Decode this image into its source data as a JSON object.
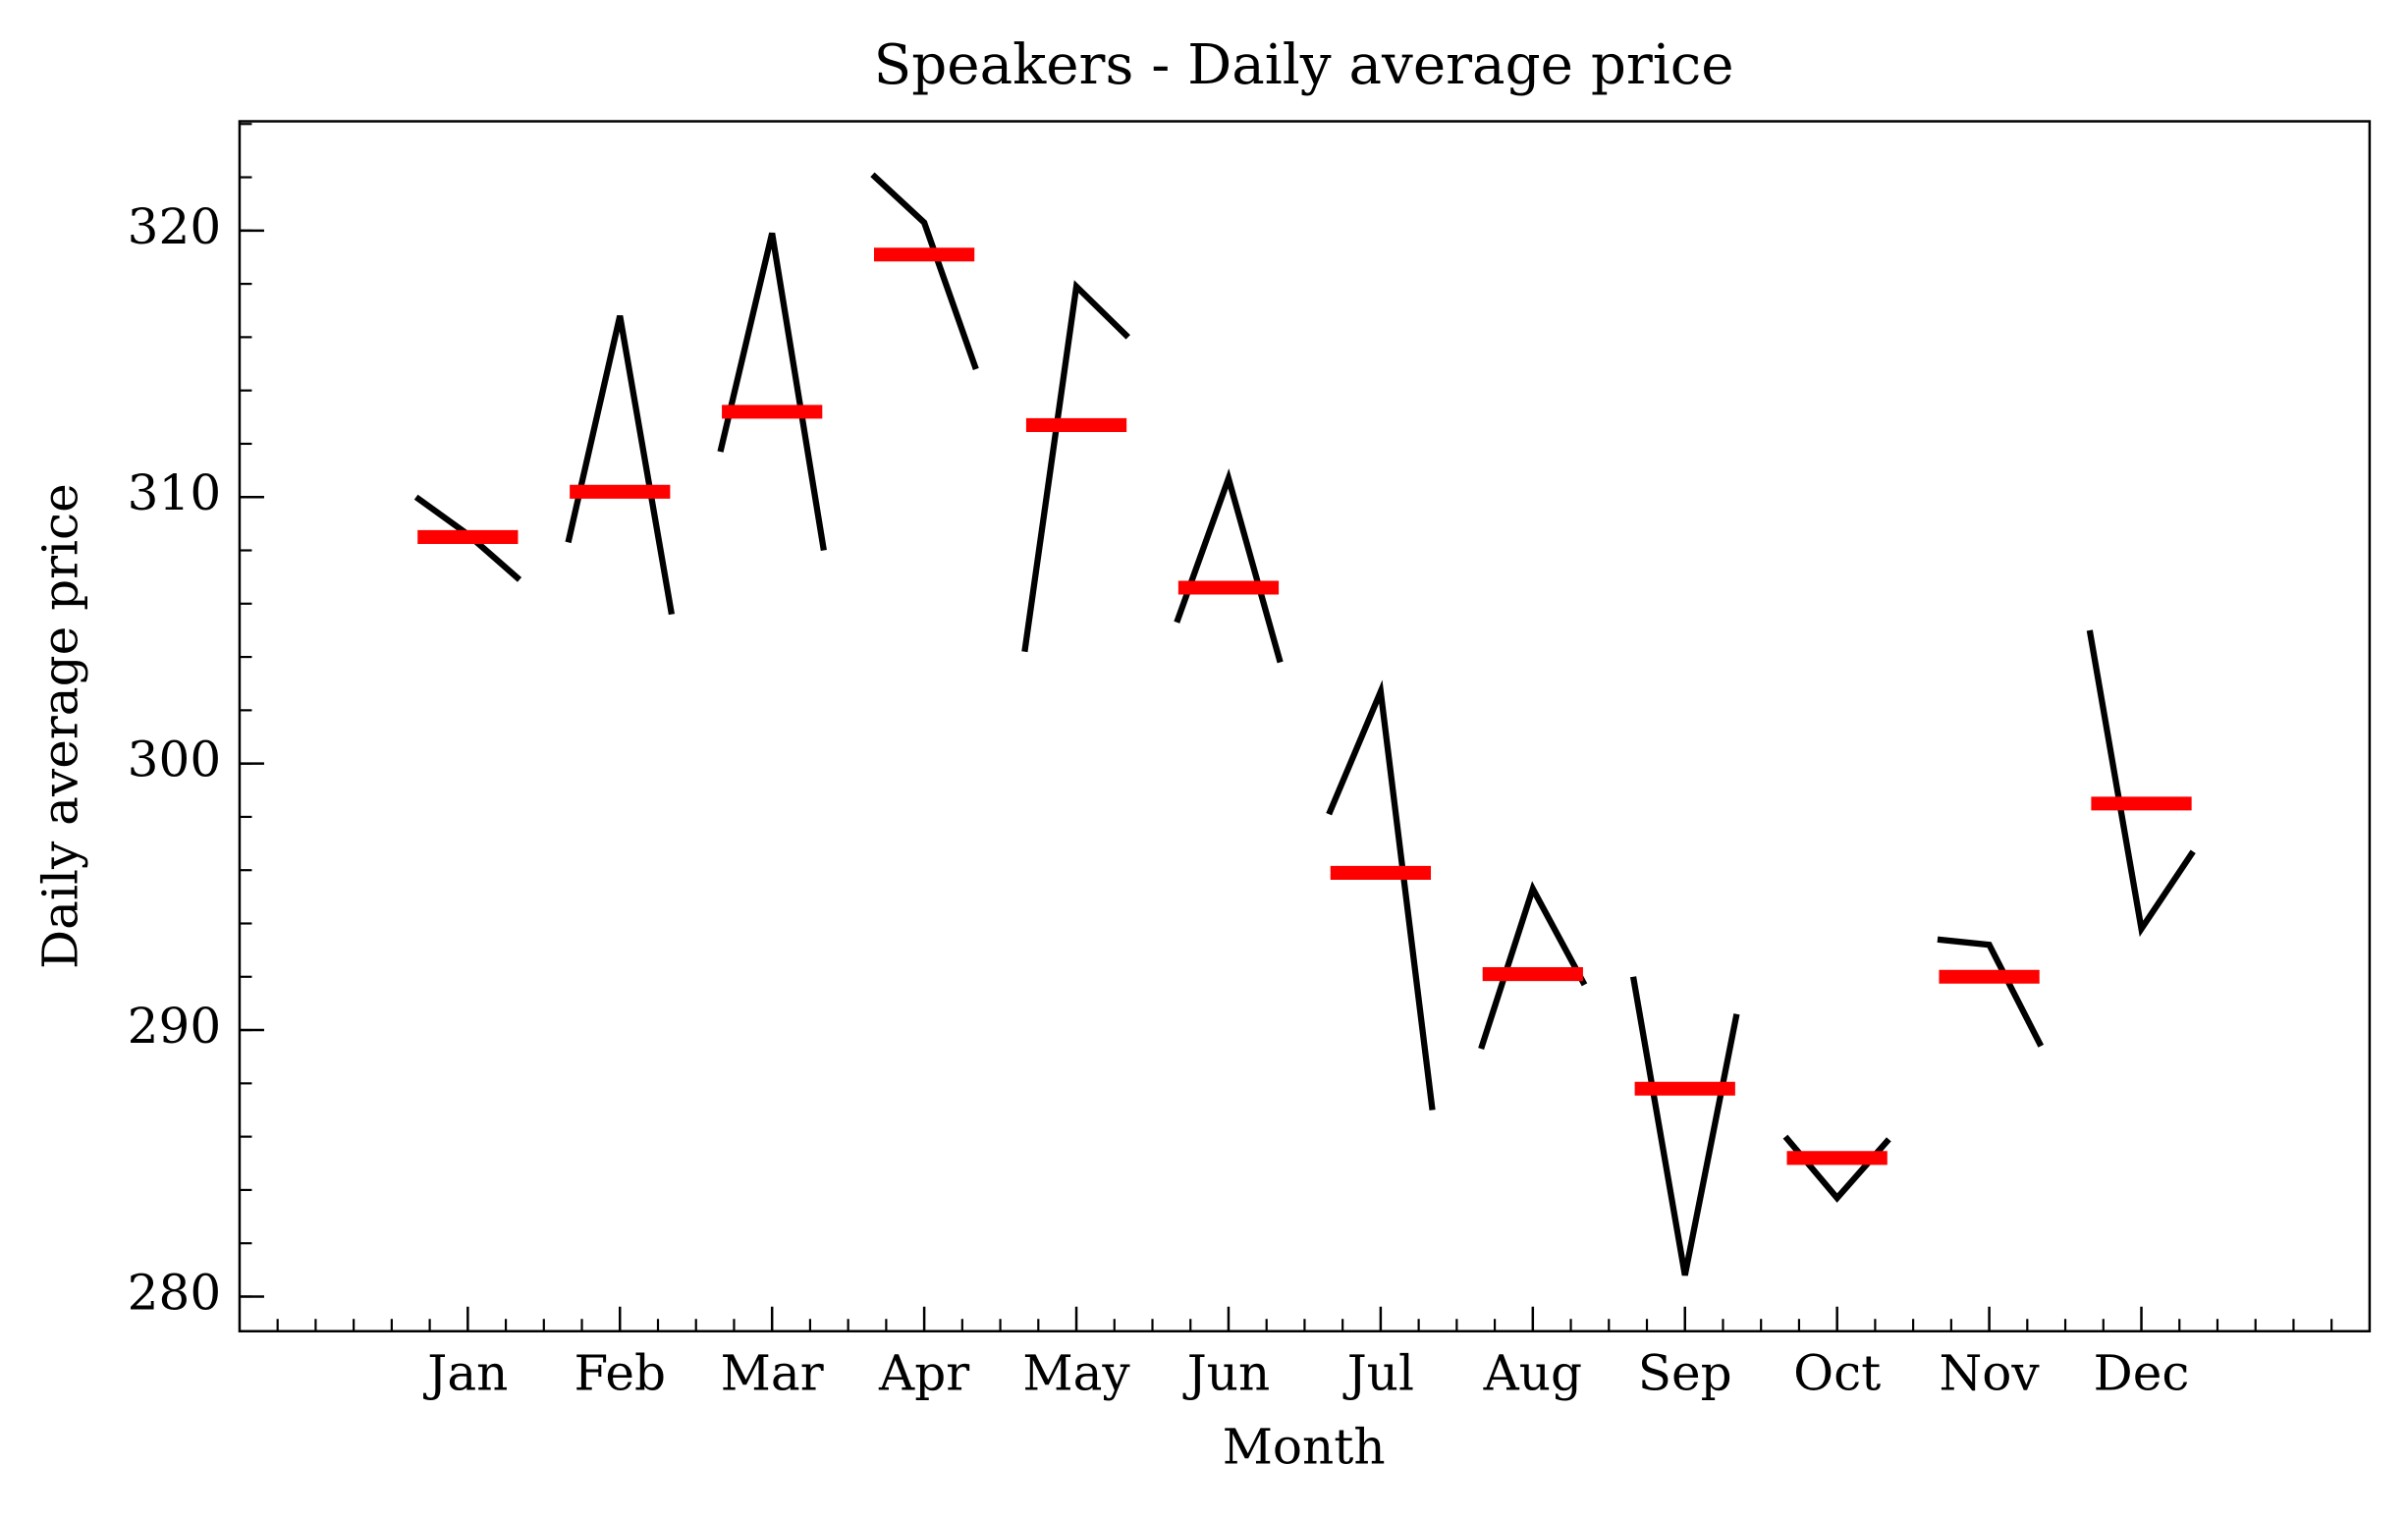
{
  "chart_data": {
    "type": "month_plot",
    "title": "Speakers - Daily average price",
    "xlabel": "Month",
    "ylabel": "Daily average price",
    "categories": [
      "Jan",
      "Feb",
      "Mar",
      "Apr",
      "May",
      "Jun",
      "Jul",
      "Aug",
      "Sep",
      "Oct",
      "Nov",
      "Dec"
    ],
    "values": [
      [
        310.0,
        308.6,
        306.9
      ],
      [
        308.3,
        316.8,
        305.6
      ],
      [
        311.7,
        319.9,
        308.0
      ],
      [
        322.1,
        320.3,
        314.8
      ],
      [
        304.2,
        317.9,
        316.0
      ],
      [
        305.3,
        310.7,
        303.8
      ],
      [
        298.1,
        302.7,
        287.0
      ],
      [
        289.3,
        295.3,
        291.7
      ],
      [
        292.0,
        280.8,
        290.6
      ],
      [
        286.0,
        283.7,
        285.9
      ],
      [
        293.4,
        293.2,
        289.4
      ],
      [
        305.0,
        293.8,
        296.7
      ]
    ],
    "means": [
      308.5,
      310.2,
      313.2,
      319.1,
      312.7,
      306.6,
      295.9,
      292.1,
      287.8,
      285.2,
      292.0,
      298.5
    ],
    "line_color": "#000000",
    "mean_color": "#ff0000",
    "xlim": [
      -1.5,
      12.5
    ],
    "xminor_step": 0.25,
    "ylim": [
      278.7,
      324.1
    ],
    "yticks": [
      280,
      290,
      300,
      310,
      320
    ],
    "yminor_step": 2,
    "grid": false
  }
}
